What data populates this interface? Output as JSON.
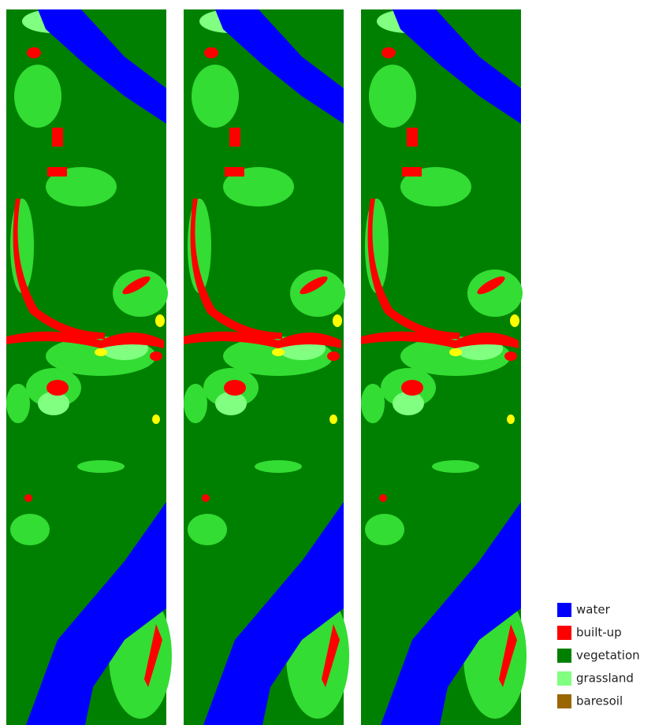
{
  "legend": [
    {
      "label": "water",
      "color": "#0000ff"
    },
    {
      "label": "built-up",
      "color": "#ff0000"
    },
    {
      "label": "vegetation",
      "color": "#008000"
    },
    {
      "label": "grassland",
      "color": "#80ff80"
    },
    {
      "label": "baresoil",
      "color": "#996600"
    }
  ]
}
